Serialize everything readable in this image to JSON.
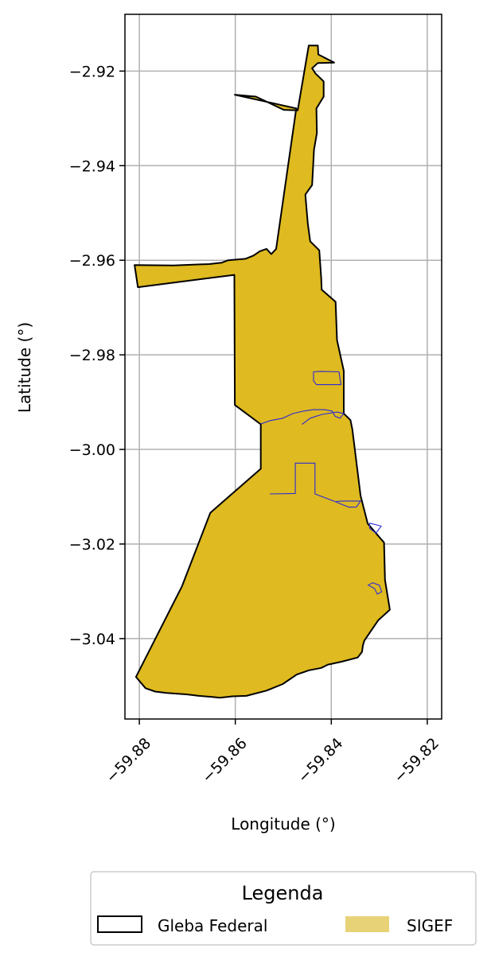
{
  "chart_data": {
    "type": "map",
    "xlabel": "Longitude (°)",
    "ylabel": "Latitude (°)",
    "xlim": [
      -59.883,
      -59.817
    ],
    "ylim": [
      -3.057,
      -2.908
    ],
    "x_ticks": [
      -59.88,
      -59.86,
      -59.84,
      -59.82
    ],
    "x_tick_labels": [
      "−59.88",
      "−59.86",
      "−59.84",
      "−59.82"
    ],
    "y_ticks": [
      -2.92,
      -2.94,
      -2.96,
      -2.98,
      -3.0,
      -3.02,
      -3.04
    ],
    "y_tick_labels": [
      "−2.92",
      "−2.94",
      "−2.96",
      "−2.98",
      "−3.00",
      "−3.02",
      "−3.04"
    ],
    "grid": true,
    "legend": {
      "title": "Legenda",
      "placement": "bottom",
      "entries": [
        {
          "label": "Gleba Federal",
          "style": "outline",
          "color": "#000000"
        },
        {
          "label": "SIGEF",
          "style": "fill",
          "color": "#e7d277"
        }
      ]
    },
    "colors": {
      "fill": "#dfba20",
      "outline": "#000000",
      "parcel_line": "#2b2bd6"
    },
    "layers": [
      {
        "name": "Gleba Federal",
        "coords": [
          [
            -59.8447,
            -2.9146
          ],
          [
            -59.8428,
            -2.9146
          ],
          [
            -59.8427,
            -2.9165
          ],
          [
            -59.8394,
            -2.9182
          ],
          [
            -59.8428,
            -2.9183
          ],
          [
            -59.844,
            -2.9194
          ],
          [
            -59.8433,
            -2.9205
          ],
          [
            -59.8416,
            -2.9222
          ],
          [
            -59.8416,
            -2.9254
          ],
          [
            -59.8431,
            -2.9279
          ],
          [
            -59.843,
            -2.9331
          ],
          [
            -59.8436,
            -2.9366
          ],
          [
            -59.844,
            -2.9441
          ],
          [
            -59.8454,
            -2.9461
          ],
          [
            -59.8449,
            -2.9523
          ],
          [
            -59.8444,
            -2.956
          ],
          [
            -59.8425,
            -2.9579
          ],
          [
            -59.8421,
            -2.9637
          ],
          [
            -59.842,
            -2.9662
          ],
          [
            -59.8391,
            -2.9688
          ],
          [
            -59.8388,
            -2.9769
          ],
          [
            -59.8374,
            -2.9834
          ],
          [
            -59.8374,
            -2.9924
          ],
          [
            -59.836,
            -2.9938
          ],
          [
            -59.8356,
            -2.9958
          ],
          [
            -59.8339,
            -3.0098
          ],
          [
            -59.8324,
            -3.0157
          ],
          [
            -59.829,
            -3.0197
          ],
          [
            -59.8288,
            -3.0276
          ],
          [
            -59.8278,
            -3.0339
          ],
          [
            -59.8302,
            -3.0361
          ],
          [
            -59.8331,
            -3.0404
          ],
          [
            -59.8334,
            -3.0414
          ],
          [
            -59.8336,
            -3.0428
          ],
          [
            -59.8345,
            -3.044
          ],
          [
            -59.8379,
            -3.0449
          ],
          [
            -59.8407,
            -3.0455
          ],
          [
            -59.8421,
            -3.0462
          ],
          [
            -59.8447,
            -3.0467
          ],
          [
            -59.8472,
            -3.0476
          ],
          [
            -59.8501,
            -3.0496
          ],
          [
            -59.8535,
            -3.051
          ],
          [
            -59.8577,
            -3.0521
          ],
          [
            -59.8606,
            -3.0522
          ],
          [
            -59.8632,
            -3.0525
          ],
          [
            -59.865,
            -3.0523
          ],
          [
            -59.8676,
            -3.0521
          ],
          [
            -59.87,
            -3.0518
          ],
          [
            -59.8743,
            -3.0515
          ],
          [
            -59.8767,
            -3.0512
          ],
          [
            -59.8787,
            -3.0505
          ],
          [
            -59.8807,
            -3.0481
          ],
          [
            -59.8711,
            -3.0289
          ],
          [
            -59.8652,
            -3.0134
          ],
          [
            -59.8547,
            -3.0041
          ],
          [
            -59.8547,
            -2.9947
          ],
          [
            -59.8601,
            -2.9906
          ],
          [
            -59.8602,
            -2.9631
          ],
          [
            -59.8803,
            -2.9657
          ],
          [
            -59.881,
            -2.961
          ],
          [
            -59.8729,
            -2.9611
          ],
          [
            -59.8654,
            -2.9608
          ],
          [
            -59.8628,
            -2.9605
          ],
          [
            -59.8615,
            -2.96
          ],
          [
            -59.8579,
            -2.9597
          ],
          [
            -59.8562,
            -2.959
          ],
          [
            -59.8549,
            -2.9581
          ],
          [
            -59.8535,
            -2.9576
          ],
          [
            -59.8525,
            -2.9587
          ],
          [
            -59.8515,
            -2.9576
          ],
          [
            -59.8473,
            -2.9279
          ],
          [
            -59.8601,
            -2.925
          ],
          [
            -59.8557,
            -2.9254
          ],
          [
            -59.8499,
            -2.9282
          ],
          [
            -59.847,
            -2.9283
          ]
        ]
      },
      {
        "name": "SIGEF",
        "parcels": [
          {
            "coords": [
              [
                -59.8422,
                -2.9835
              ],
              [
                -59.8384,
                -2.9836
              ],
              [
                -59.838,
                -2.9863
              ],
              [
                -59.8431,
                -2.9863
              ],
              [
                -59.8437,
                -2.9855
              ],
              [
                -59.8437,
                -2.9836
              ]
            ]
          },
          {
            "coords": [
              [
                -59.8461,
                -2.9947
              ],
              [
                -59.8444,
                -2.9934
              ],
              [
                -59.842,
                -2.9926
              ],
              [
                -59.8388,
                -2.9921
              ],
              [
                -59.8374,
                -2.9924
              ],
              [
                -59.8382,
                -2.9934
              ],
              [
                -59.8392,
                -2.993
              ],
              [
                -59.8398,
                -2.9919
              ],
              [
                -59.8413,
                -2.9916
              ],
              [
                -59.8438,
                -2.9916
              ],
              [
                -59.8458,
                -2.9919
              ],
              [
                -59.848,
                -2.9924
              ],
              [
                -59.8501,
                -2.9934
              ],
              [
                -59.8527,
                -2.9939
              ],
              [
                -59.8547,
                -2.9946
              ]
            ]
          },
          {
            "coords": [
              [
                -59.8528,
                -3.0094
              ],
              [
                -59.8475,
                -3.0093
              ],
              [
                -59.8475,
                -3.0029
              ],
              [
                -59.8434,
                -3.0029
              ],
              [
                -59.8434,
                -3.0094
              ],
              [
                -59.839,
                -3.0111
              ],
              [
                -59.8364,
                -3.0122
              ],
              [
                -59.8348,
                -3.0122
              ],
              [
                -59.8339,
                -3.0109
              ],
              [
                -59.8377,
                -3.0109
              ],
              [
                -59.839,
                -3.011
              ]
            ]
          },
          {
            "coords": [
              [
                -59.832,
                -3.0156
              ],
              [
                -59.8296,
                -3.0162
              ],
              [
                -59.8307,
                -3.0177
              ],
              [
                -59.832,
                -3.0167
              ]
            ]
          },
          {
            "coords": [
              [
                -59.8323,
                -3.0287
              ],
              [
                -59.831,
                -3.0294
              ],
              [
                -59.8304,
                -3.0306
              ],
              [
                -59.8295,
                -3.0301
              ],
              [
                -59.83,
                -3.0287
              ],
              [
                -59.8314,
                -3.0282
              ]
            ]
          }
        ]
      }
    ]
  }
}
